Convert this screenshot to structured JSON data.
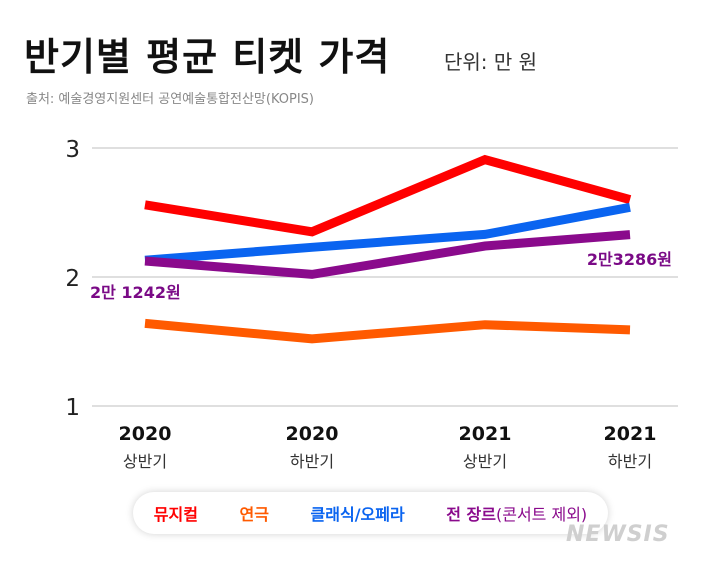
{
  "title": "반기별 평균 티켓 가격",
  "unit_label": "단위: 만 원",
  "source": "출처: 예술경영지원센터 공연예술통합전산망(KOPIS)",
  "watermark": "NEWSIS",
  "chart_data": {
    "type": "line",
    "categories": [
      {
        "year": "2020",
        "half": "상반기"
      },
      {
        "year": "2020",
        "half": "하반기"
      },
      {
        "year": "2021",
        "half": "상반기"
      },
      {
        "year": "2021",
        "half": "하반기"
      }
    ],
    "y_ticks": [
      "1",
      "2",
      "3"
    ],
    "ylim": [
      1,
      3
    ],
    "grid": true,
    "legend_placement": "bottom",
    "series": [
      {
        "name": "뮤지컬",
        "color": "#ff0000",
        "values": [
          2.56,
          2.35,
          2.91,
          2.6
        ]
      },
      {
        "name": "연극",
        "color": "#ff5a00",
        "values": [
          1.64,
          1.52,
          1.63,
          1.59
        ]
      },
      {
        "name": "클래식/오페라",
        "color": "#0a64f0",
        "values": [
          2.13,
          2.23,
          2.33,
          2.54
        ]
      },
      {
        "name": "전 장르",
        "note": "(콘서트 제외)",
        "color": "#8a0a8c",
        "values": [
          2.1242,
          2.02,
          2.24,
          2.3286
        ]
      }
    ],
    "annotations": [
      {
        "text": "2만 1242원",
        "series": "전 장르",
        "index": 0
      },
      {
        "text": "2만3286원",
        "series": "전 장르",
        "index": 3
      }
    ]
  }
}
